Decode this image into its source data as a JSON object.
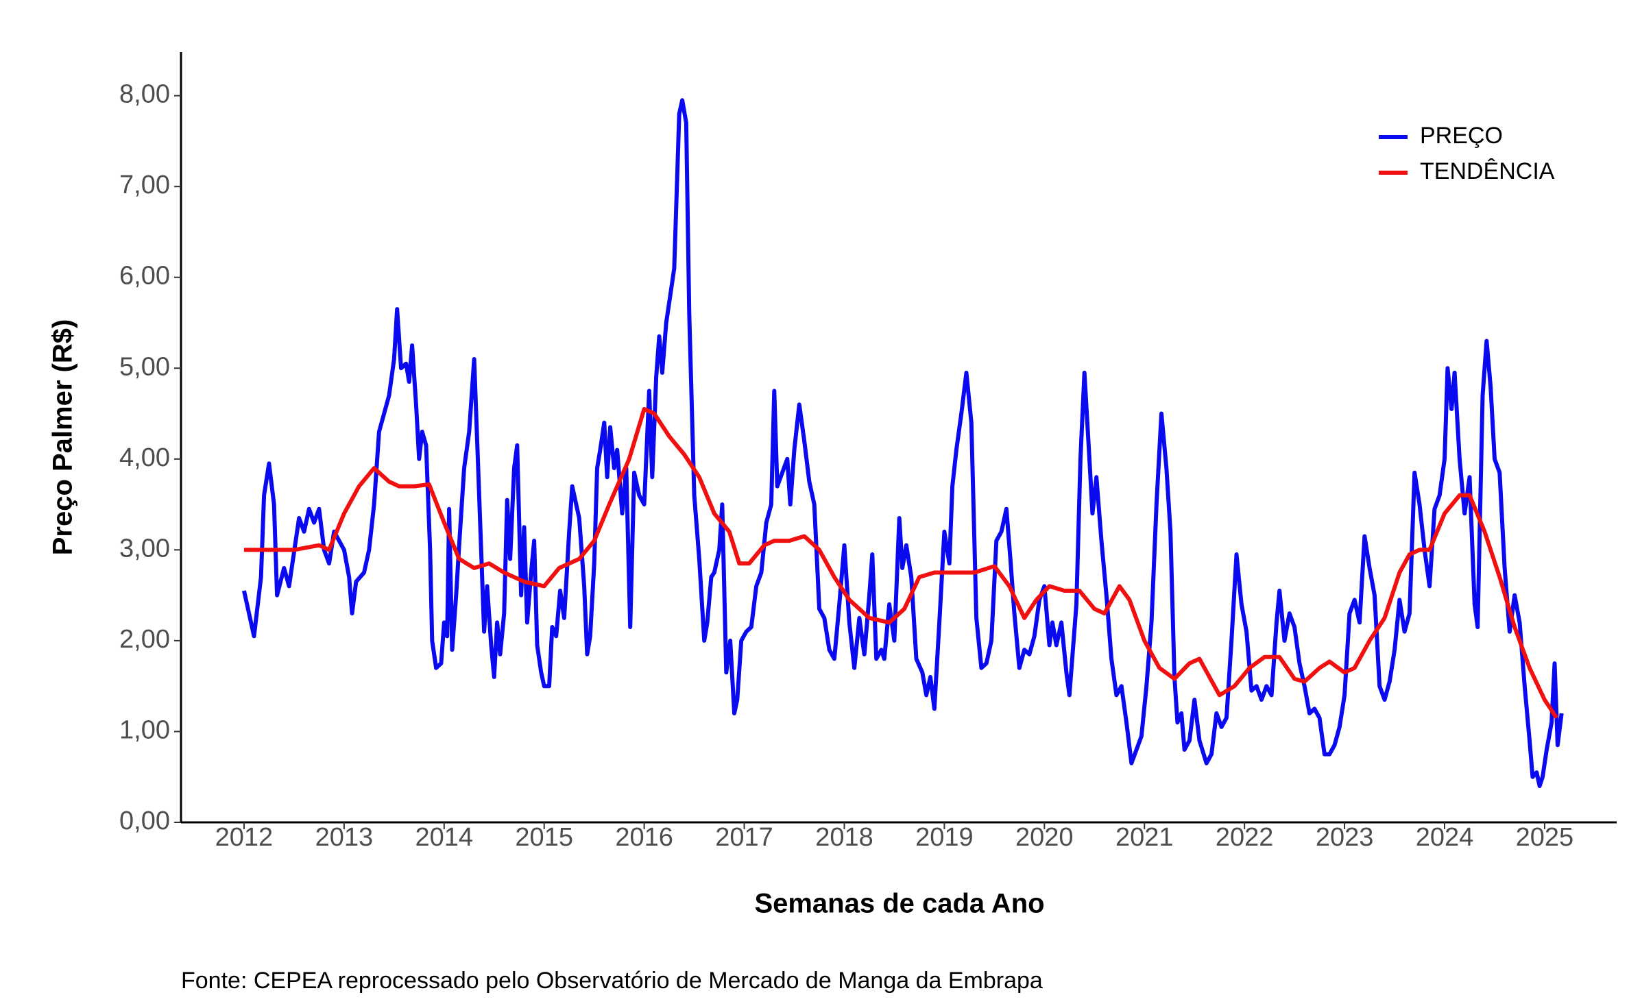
{
  "chart_data": {
    "type": "line",
    "x_label": "Semanas de cada Ano",
    "y_label": "Preço Palmer (R$)",
    "source": "Fonte: CEPEA reprocessado pelo Observatório de Mercado de Manga da Embrapa",
    "xlim": [
      2011.37,
      2025.72
    ],
    "xticks": [
      2012,
      2013,
      2014,
      2015,
      2016,
      2017,
      2018,
      2019,
      2020,
      2021,
      2022,
      2023,
      2024,
      2025
    ],
    "ylim": [
      0,
      8.48
    ],
    "yticks": [
      {
        "value": 0,
        "label": "0,00"
      },
      {
        "value": 1,
        "label": "1,00"
      },
      {
        "value": 2,
        "label": "2,00"
      },
      {
        "value": 3,
        "label": "3,00"
      },
      {
        "value": 4,
        "label": "4,00"
      },
      {
        "value": 5,
        "label": "5,00"
      },
      {
        "value": 6,
        "label": "6,00"
      },
      {
        "value": 7,
        "label": "7,00"
      },
      {
        "value": 8,
        "label": "8,00"
      }
    ],
    "legend": "top-right",
    "series": [
      {
        "name": "PREÇO",
        "color": "#0a0af0",
        "x": [
          2012.0,
          2012.1,
          2012.17,
          2012.2,
          2012.25,
          2012.3,
          2012.33,
          2012.4,
          2012.45,
          2012.55,
          2012.6,
          2012.65,
          2012.7,
          2012.75,
          2012.8,
          2012.85,
          2012.9,
          2012.95,
          2013.0,
          2013.05,
          2013.08,
          2013.12,
          2013.2,
          2013.25,
          2013.3,
          2013.35,
          2013.4,
          2013.45,
          2013.5,
          2013.53,
          2013.57,
          2013.62,
          2013.65,
          2013.68,
          2013.72,
          2013.75,
          2013.78,
          2013.82,
          2013.86,
          2013.88,
          2013.92,
          2013.97,
          2014.0,
          2014.03,
          2014.05,
          2014.08,
          2014.12,
          2014.15,
          2014.2,
          2014.25,
          2014.3,
          2014.35,
          2014.4,
          2014.43,
          2014.47,
          2014.5,
          2014.53,
          2014.56,
          2014.6,
          2014.63,
          2014.66,
          2014.7,
          2014.73,
          2014.77,
          2014.8,
          2014.83,
          2014.87,
          2014.9,
          2014.93,
          2014.97,
          2015.0,
          2015.05,
          2015.08,
          2015.12,
          2015.16,
          2015.2,
          2015.25,
          2015.28,
          2015.3,
          2015.35,
          2015.4,
          2015.43,
          2015.46,
          2015.5,
          2015.53,
          2015.56,
          2015.6,
          2015.63,
          2015.66,
          2015.7,
          2015.73,
          2015.78,
          2015.82,
          2015.86,
          2015.9,
          2015.95,
          2016.0,
          2016.05,
          2016.08,
          2016.12,
          2016.15,
          2016.18,
          2016.22,
          2016.26,
          2016.3,
          2016.35,
          2016.38,
          2016.42,
          2016.45,
          2016.5,
          2016.55,
          2016.6,
          2016.63,
          2016.67,
          2016.7,
          2016.75,
          2016.78,
          2016.82,
          2016.86,
          2016.9,
          2016.93,
          2016.97,
          2017.02,
          2017.07,
          2017.12,
          2017.17,
          2017.22,
          2017.27,
          2017.3,
          2017.33,
          2017.38,
          2017.43,
          2017.46,
          2017.5,
          2017.55,
          2017.6,
          2017.65,
          2017.7,
          2017.75,
          2017.8,
          2017.85,
          2017.9,
          2017.95,
          2018.0,
          2018.05,
          2018.1,
          2018.15,
          2018.2,
          2018.25,
          2018.28,
          2018.32,
          2018.37,
          2018.4,
          2018.45,
          2018.5,
          2018.55,
          2018.58,
          2018.62,
          2018.67,
          2018.72,
          2018.78,
          2018.82,
          2018.86,
          2018.9,
          2018.95,
          2019.0,
          2019.05,
          2019.08,
          2019.12,
          2019.17,
          2019.22,
          2019.27,
          2019.32,
          2019.37,
          2019.42,
          2019.47,
          2019.52,
          2019.57,
          2019.62,
          2019.66,
          2019.7,
          2019.75,
          2019.8,
          2019.85,
          2019.9,
          2019.95,
          2020.0,
          2020.05,
          2020.08,
          2020.12,
          2020.17,
          2020.22,
          2020.25,
          2020.32,
          2020.36,
          2020.4,
          2020.45,
          2020.48,
          2020.52,
          2020.57,
          2020.62,
          2020.67,
          2020.72,
          2020.77,
          2020.82,
          2020.87,
          2020.92,
          2020.97,
          2021.02,
          2021.07,
          2021.12,
          2021.17,
          2021.22,
          2021.26,
          2021.3,
          2021.33,
          2021.37,
          2021.4,
          2021.45,
          2021.5,
          2021.55,
          2021.62,
          2021.67,
          2021.72,
          2021.77,
          2021.82,
          2021.87,
          2021.92,
          2021.97,
          2022.02,
          2022.07,
          2022.12,
          2022.17,
          2022.22,
          2022.27,
          2022.32,
          2022.35,
          2022.4,
          2022.45,
          2022.5,
          2022.55,
          2022.6,
          2022.65,
          2022.7,
          2022.75,
          2022.8,
          2022.85,
          2022.9,
          2022.95,
          2023.0,
          2023.05,
          2023.1,
          2023.15,
          2023.2,
          2023.25,
          2023.3,
          2023.35,
          2023.4,
          2023.45,
          2023.5,
          2023.55,
          2023.6,
          2023.65,
          2023.7,
          2023.75,
          2023.8,
          2023.85,
          2023.9,
          2023.95,
          2024.0,
          2024.03,
          2024.07,
          2024.1,
          2024.15,
          2024.2,
          2024.25,
          2024.3,
          2024.33,
          2024.38,
          2024.42,
          2024.46,
          2024.5,
          2024.55,
          2024.6,
          2024.65,
          2024.7,
          2024.75,
          2024.8,
          2024.85,
          2024.88,
          2024.92,
          2024.95,
          2024.98,
          2025.02,
          2025.07,
          2025.1,
          2025.13,
          2025.17
        ],
        "values": [
          2.55,
          2.05,
          2.7,
          3.6,
          3.95,
          3.5,
          2.5,
          2.8,
          2.6,
          3.35,
          3.2,
          3.45,
          3.3,
          3.45,
          3.0,
          2.85,
          3.2,
          3.1,
          3.0,
          2.7,
          2.3,
          2.65,
          2.75,
          3.0,
          3.5,
          4.3,
          4.5,
          4.7,
          5.1,
          5.65,
          5.0,
          5.05,
          4.85,
          5.25,
          4.6,
          4.0,
          4.3,
          4.15,
          3.0,
          2.0,
          1.7,
          1.75,
          2.2,
          2.05,
          3.45,
          1.9,
          2.5,
          3.05,
          3.9,
          4.3,
          5.1,
          3.6,
          2.1,
          2.6,
          1.95,
          1.6,
          2.2,
          1.85,
          2.3,
          3.55,
          2.9,
          3.9,
          4.15,
          2.5,
          3.25,
          2.2,
          2.75,
          3.1,
          1.95,
          1.65,
          1.5,
          1.5,
          2.15,
          2.05,
          2.55,
          2.25,
          3.2,
          3.7,
          3.6,
          3.35,
          2.6,
          1.85,
          2.05,
          2.85,
          3.9,
          4.1,
          4.4,
          3.8,
          4.35,
          3.9,
          4.1,
          3.4,
          3.9,
          2.15,
          3.85,
          3.6,
          3.5,
          4.75,
          3.8,
          4.9,
          5.35,
          4.95,
          5.5,
          5.8,
          6.1,
          7.8,
          7.95,
          7.7,
          5.6,
          3.6,
          2.9,
          2.0,
          2.2,
          2.7,
          2.75,
          3.0,
          3.5,
          1.65,
          2.0,
          1.2,
          1.35,
          2.0,
          2.1,
          2.15,
          2.6,
          2.75,
          3.3,
          3.5,
          4.75,
          3.7,
          3.85,
          4.0,
          3.5,
          4.1,
          4.6,
          4.2,
          3.75,
          3.5,
          2.35,
          2.25,
          1.9,
          1.8,
          2.4,
          3.05,
          2.2,
          1.7,
          2.25,
          1.85,
          2.5,
          2.95,
          1.8,
          1.9,
          1.8,
          2.4,
          2.0,
          3.35,
          2.8,
          3.05,
          2.7,
          1.8,
          1.65,
          1.4,
          1.6,
          1.25,
          2.2,
          3.2,
          2.85,
          3.7,
          4.1,
          4.5,
          4.95,
          4.4,
          2.25,
          1.7,
          1.75,
          2.0,
          3.1,
          3.2,
          3.45,
          2.9,
          2.3,
          1.7,
          1.9,
          1.85,
          2.05,
          2.45,
          2.6,
          1.95,
          2.2,
          1.95,
          2.2,
          1.65,
          1.4,
          2.4,
          4.0,
          4.95,
          4.0,
          3.4,
          3.8,
          3.1,
          2.5,
          1.8,
          1.4,
          1.5,
          1.1,
          0.65,
          0.8,
          0.95,
          1.5,
          2.2,
          3.5,
          4.5,
          3.9,
          3.2,
          1.6,
          1.1,
          1.2,
          0.8,
          0.9,
          1.35,
          0.9,
          0.65,
          0.75,
          1.2,
          1.05,
          1.15,
          2.0,
          2.95,
          2.4,
          2.1,
          1.45,
          1.5,
          1.35,
          1.5,
          1.4,
          2.2,
          2.55,
          2.0,
          2.3,
          2.15,
          1.75,
          1.5,
          1.2,
          1.25,
          1.15,
          0.75,
          0.75,
          0.85,
          1.05,
          1.4,
          2.3,
          2.45,
          2.2,
          3.15,
          2.8,
          2.5,
          1.5,
          1.35,
          1.55,
          1.9,
          2.45,
          2.1,
          2.3,
          3.85,
          3.5,
          3.0,
          2.6,
          3.45,
          3.6,
          4.0,
          5.0,
          4.55,
          4.95,
          4.0,
          3.4,
          3.8,
          2.4,
          2.15,
          4.7,
          5.3,
          4.8,
          4.0,
          3.85,
          2.8,
          2.1,
          2.5,
          2.2,
          1.5,
          0.9,
          0.5,
          0.55,
          0.4,
          0.5,
          0.8,
          1.1,
          1.75,
          0.85,
          1.2
        ]
      },
      {
        "name": "TENDÊNCIA",
        "color": "#f01010",
        "x": [
          2012.0,
          2012.25,
          2012.5,
          2012.75,
          2012.85,
          2013.0,
          2013.15,
          2013.3,
          2013.45,
          2013.55,
          2013.7,
          2013.85,
          2014.0,
          2014.15,
          2014.3,
          2014.45,
          2014.6,
          2014.8,
          2015.0,
          2015.15,
          2015.35,
          2015.5,
          2015.65,
          2015.85,
          2016.0,
          2016.1,
          2016.25,
          2016.4,
          2016.55,
          2016.7,
          2016.85,
          2016.95,
          2017.05,
          2017.2,
          2017.3,
          2017.45,
          2017.6,
          2017.75,
          2017.9,
          2018.05,
          2018.25,
          2018.45,
          2018.6,
          2018.75,
          2018.9,
          2019.1,
          2019.3,
          2019.5,
          2019.65,
          2019.8,
          2019.92,
          2020.05,
          2020.2,
          2020.35,
          2020.5,
          2020.6,
          2020.75,
          2020.85,
          2021.0,
          2021.15,
          2021.3,
          2021.45,
          2021.55,
          2021.65,
          2021.75,
          2021.9,
          2022.05,
          2022.2,
          2022.35,
          2022.5,
          2022.6,
          2022.75,
          2022.85,
          2023.0,
          2023.1,
          2023.25,
          2023.4,
          2023.55,
          2023.65,
          2023.75,
          2023.85,
          2024.0,
          2024.15,
          2024.25,
          2024.4,
          2024.55,
          2024.7,
          2024.85,
          2025.0,
          2025.12
        ],
        "values": [
          3.0,
          3.0,
          3.0,
          3.05,
          3.0,
          3.4,
          3.7,
          3.9,
          3.75,
          3.7,
          3.7,
          3.72,
          3.3,
          2.9,
          2.8,
          2.85,
          2.75,
          2.65,
          2.6,
          2.8,
          2.9,
          3.1,
          3.5,
          4.0,
          4.55,
          4.5,
          4.25,
          4.05,
          3.8,
          3.4,
          3.2,
          2.85,
          2.85,
          3.05,
          3.1,
          3.1,
          3.15,
          3.0,
          2.7,
          2.45,
          2.25,
          2.2,
          2.35,
          2.7,
          2.75,
          2.75,
          2.75,
          2.82,
          2.6,
          2.25,
          2.45,
          2.6,
          2.55,
          2.55,
          2.35,
          2.3,
          2.6,
          2.45,
          2.0,
          1.7,
          1.58,
          1.75,
          1.8,
          1.6,
          1.4,
          1.5,
          1.7,
          1.82,
          1.82,
          1.58,
          1.55,
          1.7,
          1.77,
          1.65,
          1.7,
          2.0,
          2.25,
          2.75,
          2.95,
          3.0,
          3.0,
          3.4,
          3.6,
          3.6,
          3.2,
          2.7,
          2.15,
          1.7,
          1.35,
          1.15
        ]
      }
    ]
  }
}
